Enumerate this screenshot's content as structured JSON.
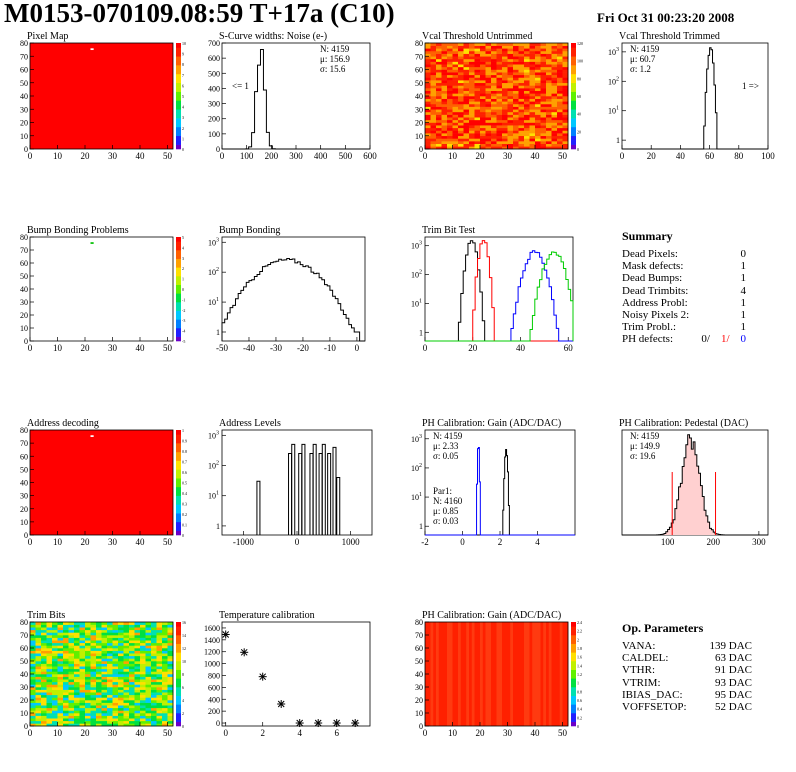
{
  "header": {
    "title": "M0153-070109.08:59 T+17a (C10)",
    "date": "Fri Oct 31 00:23:20 2008"
  },
  "colors": {
    "red": "#ff0000",
    "blue": "#0000ff",
    "green": "#00cc00",
    "black": "#000000"
  },
  "chart_data": [
    {
      "id": "pixel_map",
      "type": "heatmap",
      "title": "Pixel Map",
      "xlim": [
        0,
        52
      ],
      "ylim": [
        0,
        80
      ],
      "x_ticks": [
        0,
        10,
        20,
        30,
        40,
        50
      ],
      "y_ticks": [
        0,
        10,
        20,
        30,
        40,
        50,
        60,
        70,
        80
      ],
      "z_ticks": [
        0,
        1,
        2,
        3,
        4,
        5,
        6,
        7,
        8,
        9,
        10
      ],
      "fill": "uniform",
      "value": 10,
      "defects": [
        [
          22,
          75
        ]
      ]
    },
    {
      "id": "scurve_noise",
      "type": "histogram",
      "title": "S-Curve widths: Noise (e-)",
      "xlim": [
        0,
        600
      ],
      "ylim": [
        0,
        700
      ],
      "log": false,
      "x_ticks": [
        0,
        100,
        200,
        300,
        400,
        500,
        600
      ],
      "y_ticks": [
        0,
        100,
        200,
        300,
        400,
        500,
        600,
        700
      ],
      "series": [
        {
          "color": "#000000",
          "mean": 156.9,
          "sigma": 15.6,
          "peak": 690,
          "bins": 50
        }
      ],
      "stats": [
        "N: 4159",
        "μ: 156.9",
        "σ: 15.6"
      ],
      "annotation": "<= 1"
    },
    {
      "id": "vcal_untrimmed",
      "type": "heatmap",
      "title": "Vcal Threshold Untrimmed",
      "xlim": [
        0,
        52
      ],
      "ylim": [
        0,
        80
      ],
      "x_ticks": [
        0,
        10,
        20,
        30,
        40,
        50
      ],
      "y_ticks": [
        0,
        10,
        20,
        30,
        40,
        50,
        60,
        70,
        80
      ],
      "z_ticks": [
        0,
        20,
        40,
        60,
        80,
        100,
        120
      ],
      "fill": "noise",
      "range": [
        84,
        124
      ]
    },
    {
      "id": "vcal_trimmed",
      "type": "histogram",
      "title": "Vcal Threshold Trimmed",
      "xlim": [
        0,
        100
      ],
      "ylim": [
        0.5,
        2000
      ],
      "log": true,
      "x_ticks": [
        0,
        20,
        40,
        60,
        80,
        100
      ],
      "y_ticks": [
        1,
        10,
        100,
        1000
      ],
      "series": [
        {
          "color": "#000000",
          "mean": 60.7,
          "sigma": 1.2,
          "peak": 1300,
          "bins": 100
        }
      ],
      "stats": [
        "N: 4159",
        "μ: 60.7",
        "σ: 1.2"
      ],
      "annotation": "1 =>"
    },
    {
      "id": "bump_problems",
      "type": "heatmap",
      "title": "Bump Bonding Problems",
      "xlim": [
        0,
        52
      ],
      "ylim": [
        0,
        80
      ],
      "x_ticks": [
        0,
        10,
        20,
        30,
        40,
        50
      ],
      "y_ticks": [
        0,
        10,
        20,
        30,
        40,
        50,
        60,
        70,
        80
      ],
      "z_ticks": [
        -5,
        -4,
        -3,
        -2,
        -1,
        0,
        1,
        2,
        3,
        4,
        5
      ],
      "fill": "empty",
      "defects": [
        [
          22,
          75
        ]
      ]
    },
    {
      "id": "bump_bonding",
      "type": "histogram",
      "title": "Bump Bonding",
      "xlim": [
        -50,
        3
      ],
      "ylim": [
        0.5,
        1500
      ],
      "log": true,
      "x_ticks": [
        -50,
        -40,
        -30,
        -20,
        -10,
        0
      ],
      "y_ticks": [
        1,
        10,
        100,
        1000
      ],
      "series": [
        {
          "color": "#000000",
          "mean": -26,
          "sigma": 7.5,
          "peak": 260,
          "bins": 53,
          "outlier": [
            0,
            1
          ]
        }
      ]
    },
    {
      "id": "trim_bit_test",
      "type": "histogram",
      "title": "Trim Bit Test",
      "xlim": [
        0,
        62
      ],
      "ylim": [
        0.5,
        2000
      ],
      "log": true,
      "x_ticks": [
        0,
        20,
        40,
        60
      ],
      "y_ticks": [
        1,
        10,
        100,
        1000
      ],
      "series": [
        {
          "color": "#000000",
          "mean": 19.5,
          "sigma": 1.4,
          "peak": 1500,
          "bins": 62
        },
        {
          "color": "#ff0000",
          "mean": 24.5,
          "sigma": 1.2,
          "peak": 1700,
          "bins": 62
        },
        {
          "color": "#0000ff",
          "mean": 46,
          "sigma": 2.7,
          "peak": 600,
          "bins": 62
        },
        {
          "color": "#00cc00",
          "mean": 54,
          "sigma": 2.7,
          "peak": 600,
          "bins": 62
        }
      ]
    },
    {
      "id": "address_decoding",
      "type": "heatmap",
      "title": "Address decoding",
      "xlim": [
        0,
        52
      ],
      "ylim": [
        0,
        80
      ],
      "x_ticks": [
        0,
        10,
        20,
        30,
        40,
        50
      ],
      "y_ticks": [
        0,
        10,
        20,
        30,
        40,
        50,
        60,
        70,
        80
      ],
      "z_ticks": [
        0,
        0.1,
        0.2,
        0.3,
        0.4,
        0.5,
        0.6,
        0.7,
        0.8,
        0.9,
        1
      ],
      "fill": "uniform",
      "value": 1,
      "defects": [
        [
          22,
          75
        ]
      ]
    },
    {
      "id": "address_levels",
      "type": "histogram",
      "title": "Address Levels",
      "xlim": [
        -1400,
        1400
      ],
      "ylim": [
        0.5,
        1500
      ],
      "log": true,
      "x_ticks": [
        -1000,
        0,
        1000
      ],
      "y_ticks": [
        1,
        10,
        100,
        1000
      ],
      "spikes": [
        {
          "x": -720,
          "h": 30
        },
        {
          "x": -130,
          "h": 250
        },
        {
          "x": -70,
          "h": 500
        },
        {
          "x": 60,
          "h": 250
        },
        {
          "x": 120,
          "h": 500
        },
        {
          "x": 270,
          "h": 250
        },
        {
          "x": 330,
          "h": 500
        },
        {
          "x": 440,
          "h": 250
        },
        {
          "x": 500,
          "h": 500
        },
        {
          "x": 600,
          "h": 250
        },
        {
          "x": 700,
          "h": 400
        },
        {
          "x": 770,
          "h": 40
        }
      ]
    },
    {
      "id": "ph_gain",
      "type": "histogram",
      "title": "PH Calibration: Gain (ADC/DAC)",
      "xlim": [
        -2,
        6
      ],
      "ylim": [
        0.5,
        2000
      ],
      "log": true,
      "x_ticks": [
        -2,
        0,
        2,
        4
      ],
      "y_ticks": [
        1,
        10,
        100,
        1000
      ],
      "series": [
        {
          "color": "#000000",
          "mean": 2.33,
          "sigma": 0.05,
          "peak": 400,
          "bins": 160
        },
        {
          "color": "#0000ff",
          "mean": 0.85,
          "sigma": 0.03,
          "peak": 700,
          "bins": 160
        }
      ],
      "stats": [
        "N: 4159",
        "μ: 2.33",
        "σ: 0.05"
      ],
      "stats2": [
        "Par1:",
        "N: 4160",
        "μ: 0.85",
        "σ: 0.03"
      ]
    },
    {
      "id": "ph_pedestal",
      "type": "histogram",
      "title": "PH Calibration: Pedestal (DAC)",
      "xlim": [
        0,
        320
      ],
      "ylim": [
        0,
        110
      ],
      "log": false,
      "x_ticks": [
        100,
        200,
        300
      ],
      "y_ticks": [],
      "series": [
        {
          "color": "#000000",
          "mean": 149.9,
          "sigma": 19.6,
          "peak": 100,
          "bins": 80
        }
      ],
      "cut_lines": [
        110,
        205
      ],
      "stats": [
        "N: 4159",
        "μ: 149.9",
        "σ: 19.6"
      ]
    },
    {
      "id": "trim_bits",
      "type": "heatmap",
      "title": "Trim Bits",
      "xlim": [
        0,
        52
      ],
      "ylim": [
        0,
        80
      ],
      "x_ticks": [
        0,
        10,
        20,
        30,
        40,
        50
      ],
      "y_ticks": [
        0,
        10,
        20,
        30,
        40,
        50,
        60,
        70,
        80
      ],
      "z_ticks": [
        0,
        2,
        4,
        6,
        8,
        10,
        12,
        14,
        16
      ],
      "fill": "noise",
      "range": [
        4,
        12
      ]
    },
    {
      "id": "temperature_calibration",
      "type": "scatter",
      "title": "Temperature calibration",
      "xlim": [
        -0.2,
        7.8
      ],
      "ylim": [
        -50,
        1700
      ],
      "x_ticks": [
        0,
        2,
        4,
        6
      ],
      "y_ticks": [
        0,
        200,
        400,
        600,
        800,
        1000,
        1200,
        1400,
        1600
      ],
      "x": [
        0,
        1,
        2,
        3,
        4,
        5,
        6,
        7
      ],
      "y": [
        1490,
        1190,
        780,
        320,
        0,
        0,
        0,
        0
      ]
    },
    {
      "id": "ph_gain_map",
      "type": "heatmap",
      "title": "PH Calibration: Gain (ADC/DAC)",
      "xlim": [
        0,
        52
      ],
      "ylim": [
        0,
        80
      ],
      "x_ticks": [
        0,
        10,
        20,
        30,
        40,
        50
      ],
      "y_ticks": [
        0,
        10,
        20,
        30,
        40,
        50,
        60,
        70,
        80
      ],
      "z_ticks": [
        0,
        0.2,
        0.4,
        0.6,
        0.8,
        1,
        1.2,
        1.4,
        1.6,
        1.8,
        2,
        2.2,
        2.4
      ],
      "fill": "columns",
      "range": [
        2.2,
        2.4
      ]
    }
  ],
  "summary": {
    "title": "Summary",
    "rows": [
      {
        "label": "Dead Pixels:",
        "value": "0"
      },
      {
        "label": "Mask defects:",
        "value": "1"
      },
      {
        "label": "Dead Bumps:",
        "value": "1"
      },
      {
        "label": "Dead Trimbits:",
        "value": "4"
      },
      {
        "label": "Address Probl:",
        "value": "1"
      },
      {
        "label": "Noisy Pixels 2:",
        "value": "1"
      },
      {
        "label": "Trim Probl.:",
        "value": "1"
      }
    ],
    "ph_label": "PH defects:",
    "ph_values": [
      "0/",
      "1/",
      "0"
    ]
  },
  "op_params": {
    "title": "Op. Parameters",
    "rows": [
      {
        "label": "VANA:",
        "value": "139 DAC"
      },
      {
        "label": "CALDEL:",
        "value": "63 DAC"
      },
      {
        "label": "VTHR:",
        "value": "91 DAC"
      },
      {
        "label": "VTRIM:",
        "value": "93 DAC"
      },
      {
        "label": "IBIAS_DAC:",
        "value": "95 DAC"
      },
      {
        "label": "VOFFSETOP:",
        "value": "52 DAC"
      }
    ]
  }
}
